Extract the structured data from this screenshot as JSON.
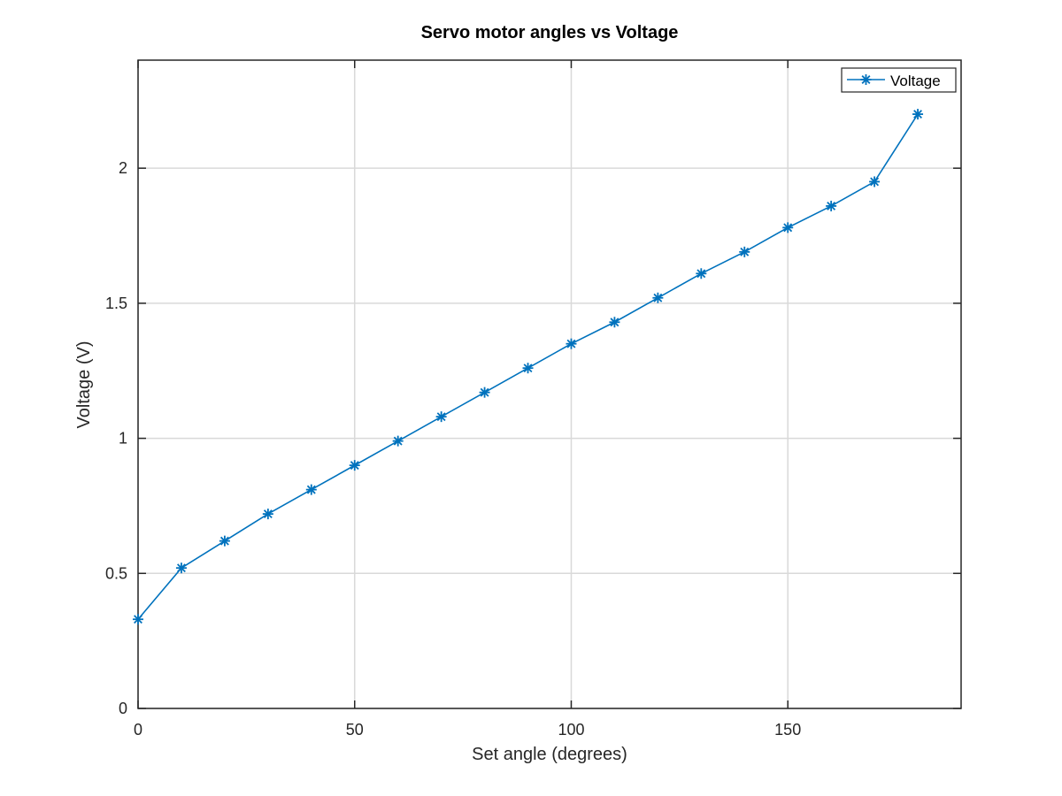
{
  "chart_data": {
    "type": "line",
    "title": "Servo motor angles vs Voltage",
    "xlabel": "Set angle (degrees)",
    "ylabel": "Voltage (V)",
    "xlim": [
      0,
      190
    ],
    "ylim": [
      0,
      2.4
    ],
    "xticks": [
      0,
      50,
      100,
      150
    ],
    "yticks": [
      0,
      0.5,
      1,
      1.5,
      2
    ],
    "xtick_labels": [
      "0",
      "50",
      "100",
      "150"
    ],
    "ytick_labels": [
      "0",
      "0.5",
      "1",
      "1.5",
      "2"
    ],
    "grid": true,
    "legend_position": "top-right",
    "series": [
      {
        "name": "Voltage",
        "color": "#0072bd",
        "marker": "asterisk",
        "x": [
          0,
          10,
          20,
          30,
          40,
          50,
          60,
          70,
          80,
          90,
          100,
          110,
          120,
          130,
          140,
          150,
          160,
          170,
          180
        ],
        "y": [
          0.33,
          0.52,
          0.62,
          0.72,
          0.81,
          0.9,
          0.99,
          1.08,
          1.17,
          1.26,
          1.35,
          1.43,
          1.52,
          1.61,
          1.69,
          1.78,
          1.86,
          1.95,
          2.2
        ]
      }
    ]
  }
}
